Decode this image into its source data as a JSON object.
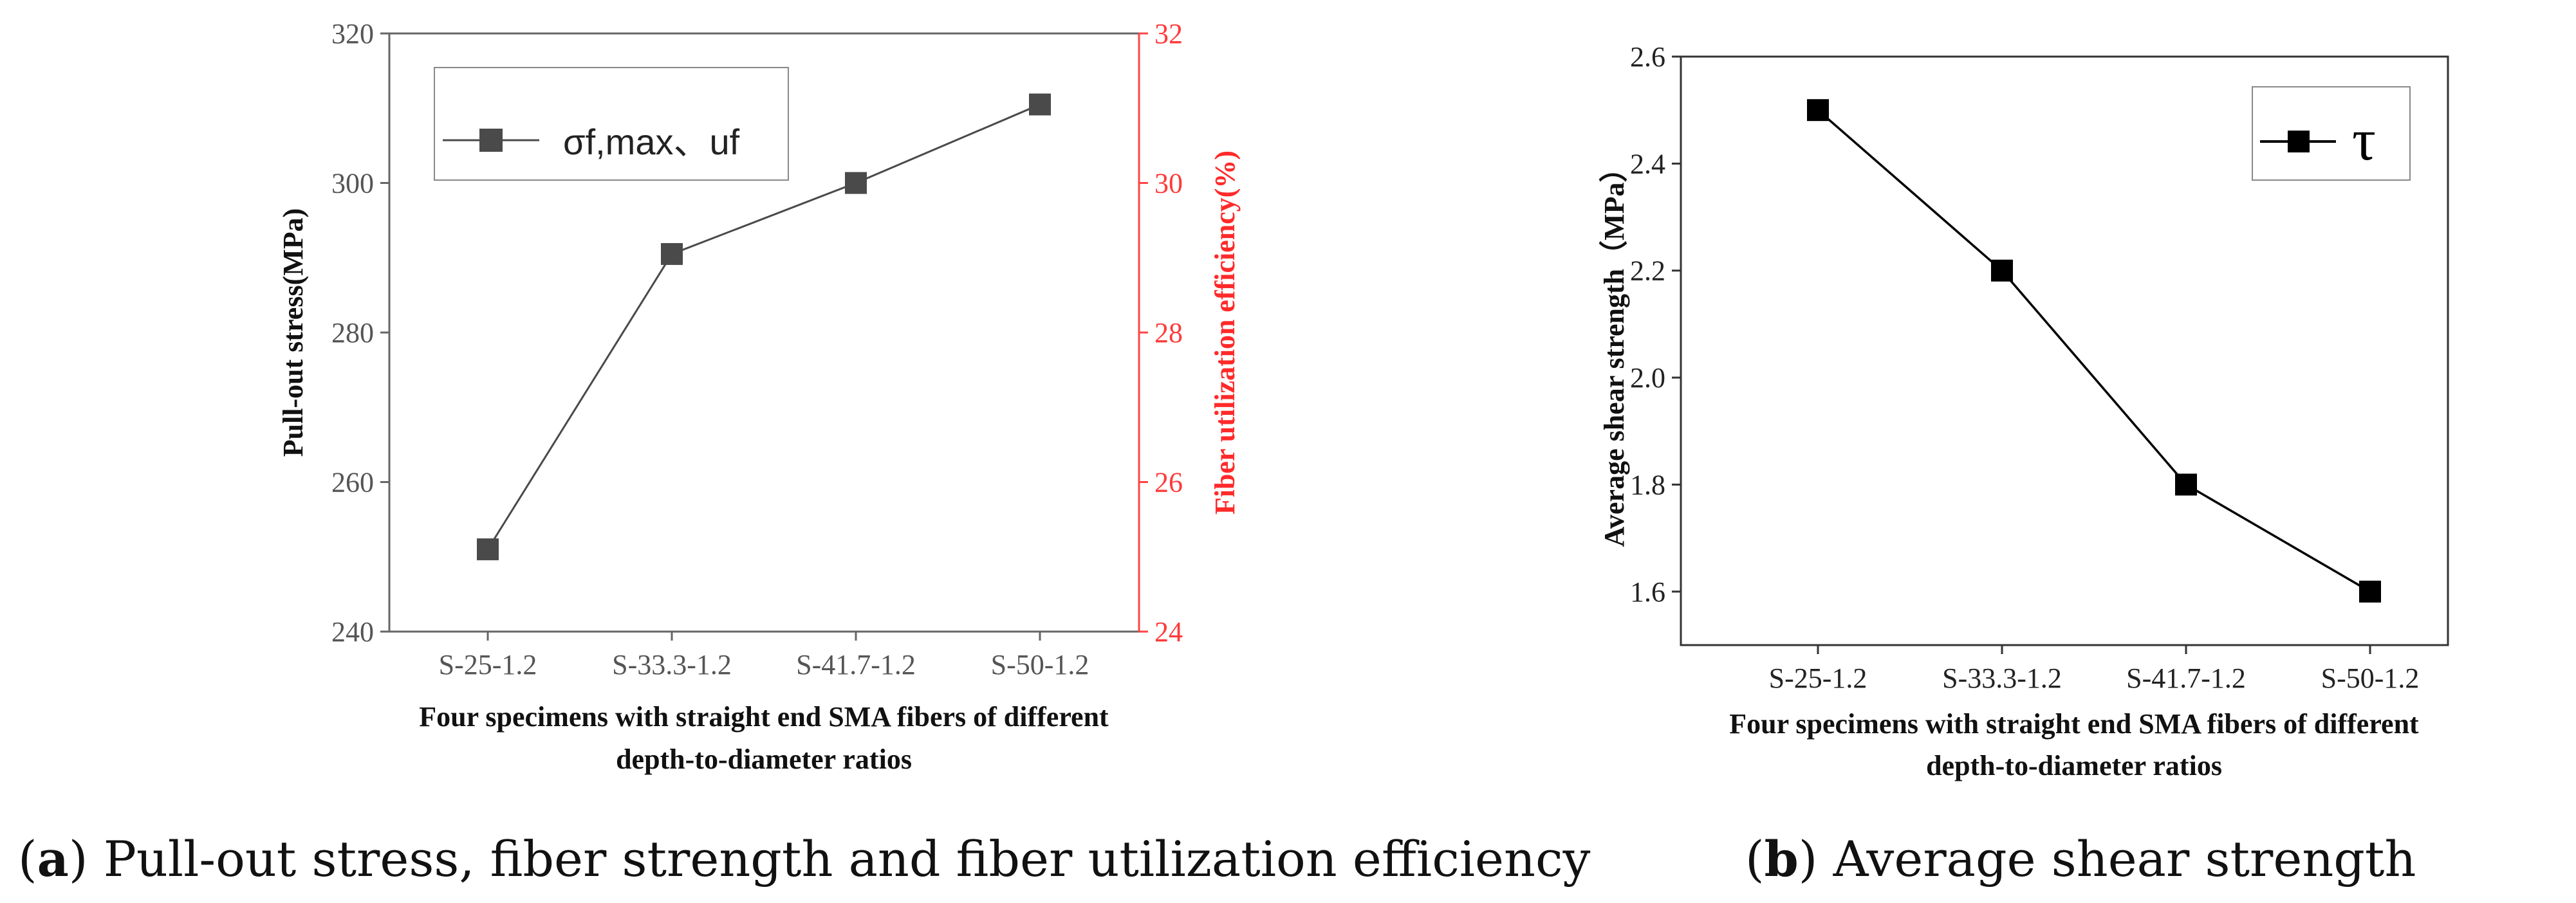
{
  "chart_data": [
    {
      "id": "a",
      "type": "line",
      "categories": [
        "S-25-1.2",
        "S-33.3-1.2",
        "S-41.7-1.2",
        "S-50-1.2"
      ],
      "series": [
        {
          "name": "σf,max、uf",
          "values": [
            251,
            290.5,
            300,
            310.5
          ]
        }
      ],
      "ylabel": "Pull-out  stress(MPa)",
      "ylim": [
        240,
        320
      ],
      "yticks": [
        "240",
        "260",
        "280",
        "300",
        "320"
      ],
      "y2label": "Fiber utilization efficiency(%)",
      "y2lim": [
        24,
        32
      ],
      "y2ticks": [
        "24",
        "26",
        "28",
        "30",
        "32"
      ],
      "xlabel_line1": "Four specimens with straight end SMA fibers of different",
      "xlabel_line2": "depth-to-diameter ratios",
      "legend": "σf,max、uf",
      "caption_letter": "a",
      "caption_text": " Pull-out stress, fiber strength and fiber utilization efficiency",
      "color": "#4a4a4a",
      "accent": "#ff2a2a"
    },
    {
      "id": "b",
      "type": "line",
      "categories": [
        "S-25-1.2",
        "S-33.3-1.2",
        "S-41.7-1.2",
        "S-50-1.2"
      ],
      "series": [
        {
          "name": "τ",
          "values": [
            2.5,
            2.2,
            1.8,
            1.6
          ]
        }
      ],
      "ylabel": "Average shear strength（MPa）",
      "ylim": [
        1.5,
        2.6
      ],
      "yticks": [
        "1.6",
        "1.8",
        "2.0",
        "2.2",
        "2.4",
        "2.6"
      ],
      "xlabel_line1": "Four specimens with straight end SMA fibers of different",
      "xlabel_line2": "depth-to-diameter ratios",
      "legend": "τ",
      "caption_letter": "b",
      "caption_text": " Average shear strength",
      "color": "#000000"
    }
  ]
}
